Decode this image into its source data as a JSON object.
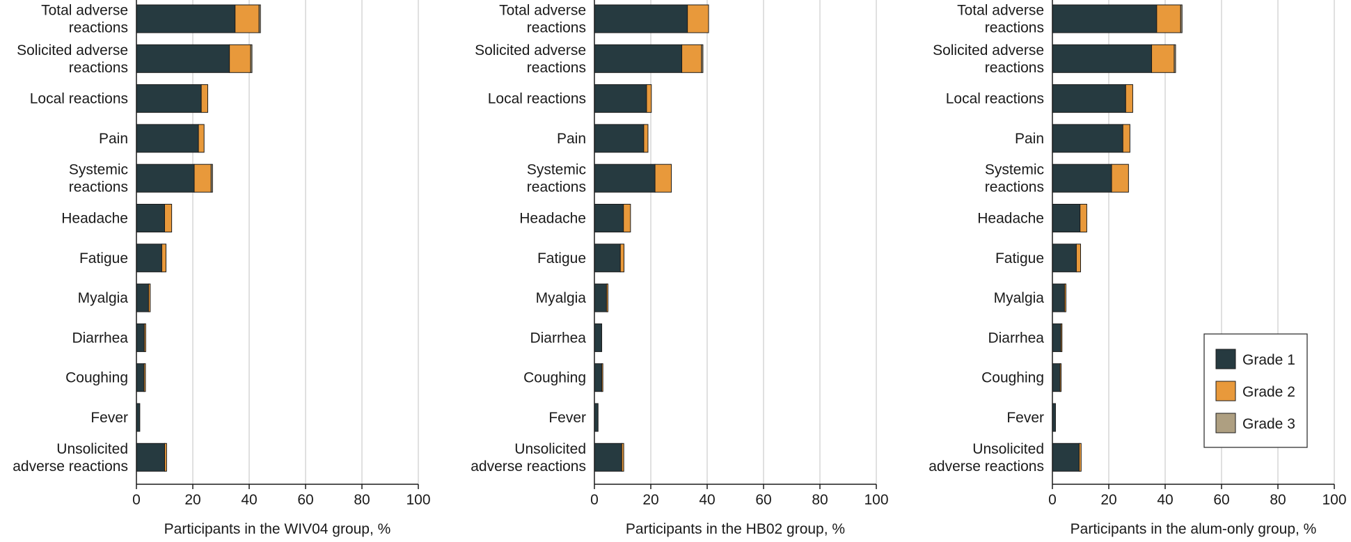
{
  "legend": {
    "items": [
      {
        "label": "Grade 1",
        "color": "#263a40"
      },
      {
        "label": "Grade 2",
        "color": "#e8993b"
      },
      {
        "label": "Grade 3",
        "color": "#ae9f81"
      }
    ]
  },
  "chart_data": [
    {
      "type": "bar",
      "orientation": "horizontal",
      "stacked": true,
      "xlabel": "Participants in the WIV04 group, %",
      "xlim": [
        0,
        100
      ],
      "xticks": [
        0,
        20,
        40,
        60,
        80,
        100
      ],
      "grid": "vertical",
      "categories": [
        [
          "Total adverse",
          "reactions"
        ],
        [
          "Solicited adverse",
          "reactions"
        ],
        [
          "Local reactions"
        ],
        [
          "Pain"
        ],
        [
          "Systemic",
          "reactions"
        ],
        [
          "Headache"
        ],
        [
          "Fatigue"
        ],
        [
          "Myalgia"
        ],
        [
          "Diarrhea"
        ],
        [
          "Coughing"
        ],
        [
          "Fever"
        ],
        [
          "Unsolicited",
          "adverse reactions"
        ]
      ],
      "series": [
        {
          "name": "Grade 1",
          "color": "#263a40",
          "values": [
            35.0,
            33.0,
            23.0,
            22.0,
            20.5,
            10.0,
            9.0,
            4.3,
            2.8,
            2.7,
            1.2,
            10.0
          ]
        },
        {
          "name": "Grade 2",
          "color": "#e8993b",
          "values": [
            8.5,
            7.5,
            2.3,
            2.0,
            6.0,
            2.5,
            1.5,
            0.6,
            0.5,
            0.5,
            0.0,
            0.7
          ]
        },
        {
          "name": "Grade 3",
          "color": "#ae9f81",
          "values": [
            0.5,
            0.5,
            0.0,
            0.0,
            0.5,
            0.0,
            0.0,
            0.0,
            0.0,
            0.0,
            0.0,
            0.0
          ]
        }
      ]
    },
    {
      "type": "bar",
      "orientation": "horizontal",
      "stacked": true,
      "xlabel": "Participants in the HB02 group, %",
      "xlim": [
        0,
        100
      ],
      "xticks": [
        0,
        20,
        40,
        60,
        80,
        100
      ],
      "grid": "vertical",
      "categories": [
        [
          "Total adverse",
          "reactions"
        ],
        [
          "Solicited adverse",
          "reactions"
        ],
        [
          "Local reactions"
        ],
        [
          "Pain"
        ],
        [
          "Systemic",
          "reactions"
        ],
        [
          "Headache"
        ],
        [
          "Fatigue"
        ],
        [
          "Myalgia"
        ],
        [
          "Diarrhea"
        ],
        [
          "Coughing"
        ],
        [
          "Fever"
        ],
        [
          "Unsolicited",
          "adverse reactions"
        ]
      ],
      "series": [
        {
          "name": "Grade 1",
          "color": "#263a40",
          "values": [
            33.0,
            31.0,
            18.5,
            17.5,
            21.5,
            10.3,
            9.2,
            4.3,
            2.6,
            2.6,
            1.3,
            9.7
          ]
        },
        {
          "name": "Grade 2",
          "color": "#e8993b",
          "values": [
            7.5,
            7.0,
            1.7,
            1.5,
            5.8,
            2.5,
            1.3,
            0.5,
            0.0,
            0.4,
            0.0,
            0.7
          ]
        },
        {
          "name": "Grade 3",
          "color": "#ae9f81",
          "values": [
            0.0,
            0.5,
            0.0,
            0.0,
            0.0,
            0.0,
            0.0,
            0.0,
            0.0,
            0.0,
            0.0,
            0.0
          ]
        }
      ]
    },
    {
      "type": "bar",
      "orientation": "horizontal",
      "stacked": true,
      "xlabel": "Participants in the alum-only group, %",
      "xlim": [
        0,
        100
      ],
      "xticks": [
        0,
        20,
        40,
        60,
        80,
        100
      ],
      "grid": "vertical",
      "categories": [
        [
          "Total adverse",
          "reactions"
        ],
        [
          "Solicited adverse",
          "reactions"
        ],
        [
          "Local reactions"
        ],
        [
          "Pain"
        ],
        [
          "Systemic",
          "reactions"
        ],
        [
          "Headache"
        ],
        [
          "Fatigue"
        ],
        [
          "Myalgia"
        ],
        [
          "Diarrhea"
        ],
        [
          "Coughing"
        ],
        [
          "Fever"
        ],
        [
          "Unsolicited",
          "adverse reactions"
        ]
      ],
      "series": [
        {
          "name": "Grade 1",
          "color": "#263a40",
          "values": [
            37.0,
            35.2,
            26.0,
            25.0,
            21.0,
            9.8,
            8.5,
            4.3,
            3.0,
            2.7,
            1.1,
            9.5
          ]
        },
        {
          "name": "Grade 2",
          "color": "#e8993b",
          "values": [
            8.5,
            8.0,
            2.5,
            2.5,
            6.0,
            2.4,
            1.5,
            0.5,
            0.4,
            0.4,
            0.0,
            0.7
          ]
        },
        {
          "name": "Grade 3",
          "color": "#ae9f81",
          "values": [
            0.5,
            0.5,
            0.0,
            0.0,
            0.0,
            0.0,
            0.0,
            0.0,
            0.0,
            0.0,
            0.0,
            0.0
          ]
        }
      ]
    }
  ]
}
